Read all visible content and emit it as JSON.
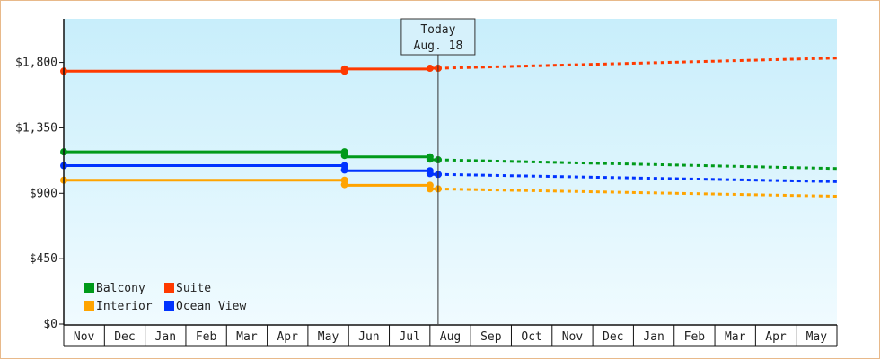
{
  "chart_data": {
    "type": "line",
    "y_ticks": [
      "$0",
      "$450",
      "$900",
      "$1,350",
      "$1,800"
    ],
    "y_tick_values": [
      0,
      450,
      900,
      1350,
      1800
    ],
    "ylim": [
      0,
      2100
    ],
    "months": [
      "Nov",
      "Dec",
      "Jan",
      "Feb",
      "Mar",
      "Apr",
      "May",
      "Jun",
      "Jul",
      "Aug",
      "Sep",
      "Oct",
      "Nov",
      "Dec",
      "Jan",
      "Feb",
      "Mar",
      "Apr",
      "May"
    ],
    "today": {
      "line1": "Today",
      "line2": "Aug. 18",
      "month_index": 9.2
    },
    "legend": [
      {
        "name": "Balcony",
        "color": "#009a1a"
      },
      {
        "name": "Suite",
        "color": "#ff3a00"
      },
      {
        "name": "Interior",
        "color": "#ffa400"
      },
      {
        "name": "Ocean View",
        "color": "#0033ff"
      }
    ],
    "series": [
      {
        "name": "Suite",
        "color": "#ff3a00",
        "actual": [
          [
            0,
            1740
          ],
          [
            6.9,
            1740
          ],
          [
            6.9,
            1755
          ],
          [
            9.0,
            1755
          ],
          [
            9.0,
            1760
          ],
          [
            9.2,
            1760
          ]
        ],
        "markers": [
          [
            0,
            1740
          ],
          [
            6.9,
            1740
          ],
          [
            6.9,
            1755
          ],
          [
            9.0,
            1760
          ],
          [
            9.2,
            1760
          ]
        ],
        "forecast": [
          [
            9.2,
            1760
          ],
          [
            19,
            1830
          ]
        ]
      },
      {
        "name": "Balcony",
        "color": "#009a1a",
        "actual": [
          [
            0,
            1185
          ],
          [
            6.9,
            1185
          ],
          [
            6.9,
            1150
          ],
          [
            9.0,
            1150
          ],
          [
            9.0,
            1130
          ],
          [
            9.2,
            1130
          ]
        ],
        "markers": [
          [
            0,
            1185
          ],
          [
            6.9,
            1185
          ],
          [
            6.9,
            1160
          ],
          [
            9.0,
            1150
          ],
          [
            9.0,
            1135
          ],
          [
            9.2,
            1130
          ]
        ],
        "forecast": [
          [
            9.2,
            1130
          ],
          [
            19,
            1070
          ]
        ]
      },
      {
        "name": "Ocean View",
        "color": "#0033ff",
        "actual": [
          [
            0,
            1090
          ],
          [
            6.9,
            1090
          ],
          [
            6.9,
            1055
          ],
          [
            9.0,
            1055
          ],
          [
            9.0,
            1030
          ],
          [
            9.2,
            1030
          ]
        ],
        "markers": [
          [
            0,
            1090
          ],
          [
            6.9,
            1090
          ],
          [
            6.9,
            1060
          ],
          [
            9.0,
            1055
          ],
          [
            9.0,
            1035
          ],
          [
            9.2,
            1030
          ]
        ],
        "forecast": [
          [
            9.2,
            1030
          ],
          [
            19,
            980
          ]
        ]
      },
      {
        "name": "Interior",
        "color": "#ffa400",
        "actual": [
          [
            0,
            990
          ],
          [
            6.9,
            990
          ],
          [
            6.9,
            955
          ],
          [
            9.0,
            955
          ],
          [
            9.0,
            930
          ],
          [
            9.2,
            930
          ]
        ],
        "markers": [
          [
            0,
            990
          ],
          [
            6.9,
            990
          ],
          [
            6.9,
            960
          ],
          [
            9.0,
            955
          ],
          [
            9.0,
            930
          ],
          [
            9.2,
            930
          ]
        ],
        "forecast": [
          [
            9.2,
            930
          ],
          [
            19,
            880
          ]
        ]
      }
    ],
    "grid": false,
    "legend_position": "bottom-left"
  }
}
